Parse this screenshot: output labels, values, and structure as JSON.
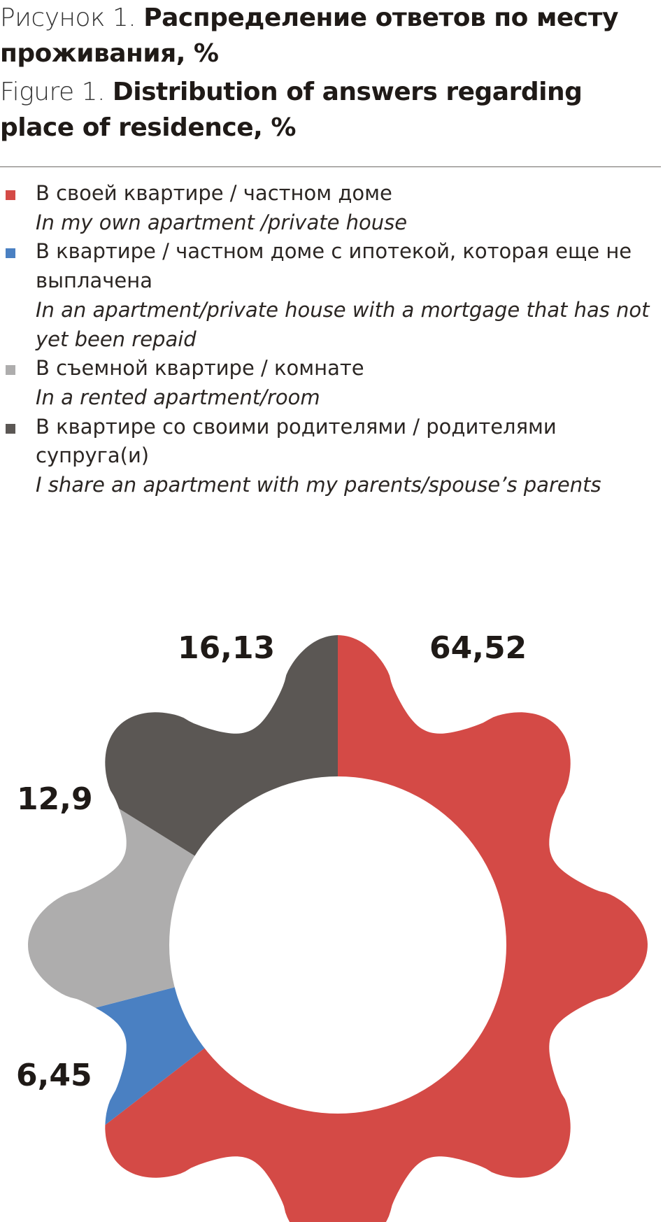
{
  "title_ru": {
    "prefix": "Рисунок 1. ",
    "text": "Распределение ответов по месту проживания, %"
  },
  "title_en": {
    "prefix": "Figure 1. ",
    "text": "Distribution of answers regarding place of residence, %"
  },
  "chart_data": {
    "type": "pie",
    "style": "flower-shaped donut, 8 petals, clockwise from top",
    "legend_position": "top",
    "series": [
      {
        "name_ru": "В своей квартире / частном доме",
        "name_en": "In my own apartment /private house",
        "value": 64.52,
        "label": "64,52",
        "color": "#d44a46"
      },
      {
        "name_ru": "В квартире / частном доме с ипотекой, которая еще не выплачена",
        "name_en": "In an apartment/private house with a mortgage that has not yet been repaid",
        "value": 6.45,
        "label": "6,45",
        "color": "#4a80c2"
      },
      {
        "name_ru": "В съемной квартире / комнате",
        "name_en": "In a rented apartment/room",
        "value": 12.9,
        "label": "12,9",
        "color": "#aeadad"
      },
      {
        "name_ru": "В квартире со своими родителями / родителями супруга(и)",
        "name_en": "I share an apartment with my parents/spouse’s parents",
        "value": 16.13,
        "label": "16,13",
        "color": "#5b5754"
      }
    ]
  }
}
